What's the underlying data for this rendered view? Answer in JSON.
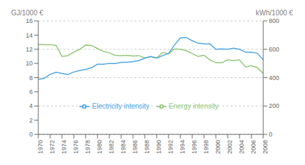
{
  "chart_data": {
    "type": "line",
    "x": [
      1970,
      1971,
      1972,
      1973,
      1974,
      1975,
      1976,
      1977,
      1978,
      1979,
      1980,
      1981,
      1982,
      1983,
      1984,
      1985,
      1986,
      1987,
      1988,
      1989,
      1990,
      1991,
      1992,
      1993,
      1994,
      1995,
      1996,
      1997,
      1998,
      1999,
      2000,
      2001,
      2002,
      2003,
      2004,
      2005,
      2006,
      2007,
      2008
    ],
    "series": [
      {
        "name": "Energy intensity",
        "color": "#90c978",
        "values": [
          12.7,
          12.65,
          12.65,
          12.55,
          11.0,
          11.1,
          11.6,
          12.0,
          12.6,
          12.55,
          12.1,
          11.7,
          11.5,
          11.15,
          11.1,
          11.15,
          11.05,
          11.1,
          10.75,
          10.95,
          10.75,
          11.55,
          11.35,
          12.05,
          12.0,
          11.8,
          11.4,
          11.0,
          11.15,
          10.5,
          10.1,
          10.1,
          10.5,
          10.4,
          10.5,
          9.5,
          9.7,
          9.4,
          8.6
        ]
      },
      {
        "name": "Electricity intensity",
        "color": "#4da6e8",
        "values": [
          7.75,
          7.9,
          8.45,
          8.75,
          8.6,
          8.45,
          8.8,
          9.0,
          9.15,
          9.4,
          9.9,
          9.9,
          10.0,
          10.0,
          10.15,
          10.15,
          10.25,
          10.4,
          10.75,
          11.0,
          10.75,
          11.1,
          11.4,
          12.6,
          13.6,
          13.65,
          13.2,
          12.85,
          12.75,
          12.75,
          12.0,
          12.05,
          12.0,
          12.15,
          12.0,
          11.6,
          11.55,
          11.45,
          10.5
        ]
      }
    ],
    "y_label": "GJ/1000 €",
    "y2_label": "kWh/1000 €",
    "xlim": [
      1970,
      2008
    ],
    "xticks": [
      1970,
      1972,
      1974,
      1976,
      1978,
      1980,
      1982,
      1984,
      1986,
      1988,
      1990,
      1992,
      1994,
      1996,
      1998,
      2000,
      2002,
      2004,
      2006,
      2008
    ],
    "ylim": [
      0,
      16
    ],
    "yticks": [
      0,
      2,
      4,
      6,
      8,
      10,
      12,
      14,
      16
    ],
    "y2lim": [
      0,
      800
    ],
    "y2ticks": [
      0,
      200,
      400,
      600,
      800
    ],
    "grid": true,
    "legend": "lower center"
  }
}
